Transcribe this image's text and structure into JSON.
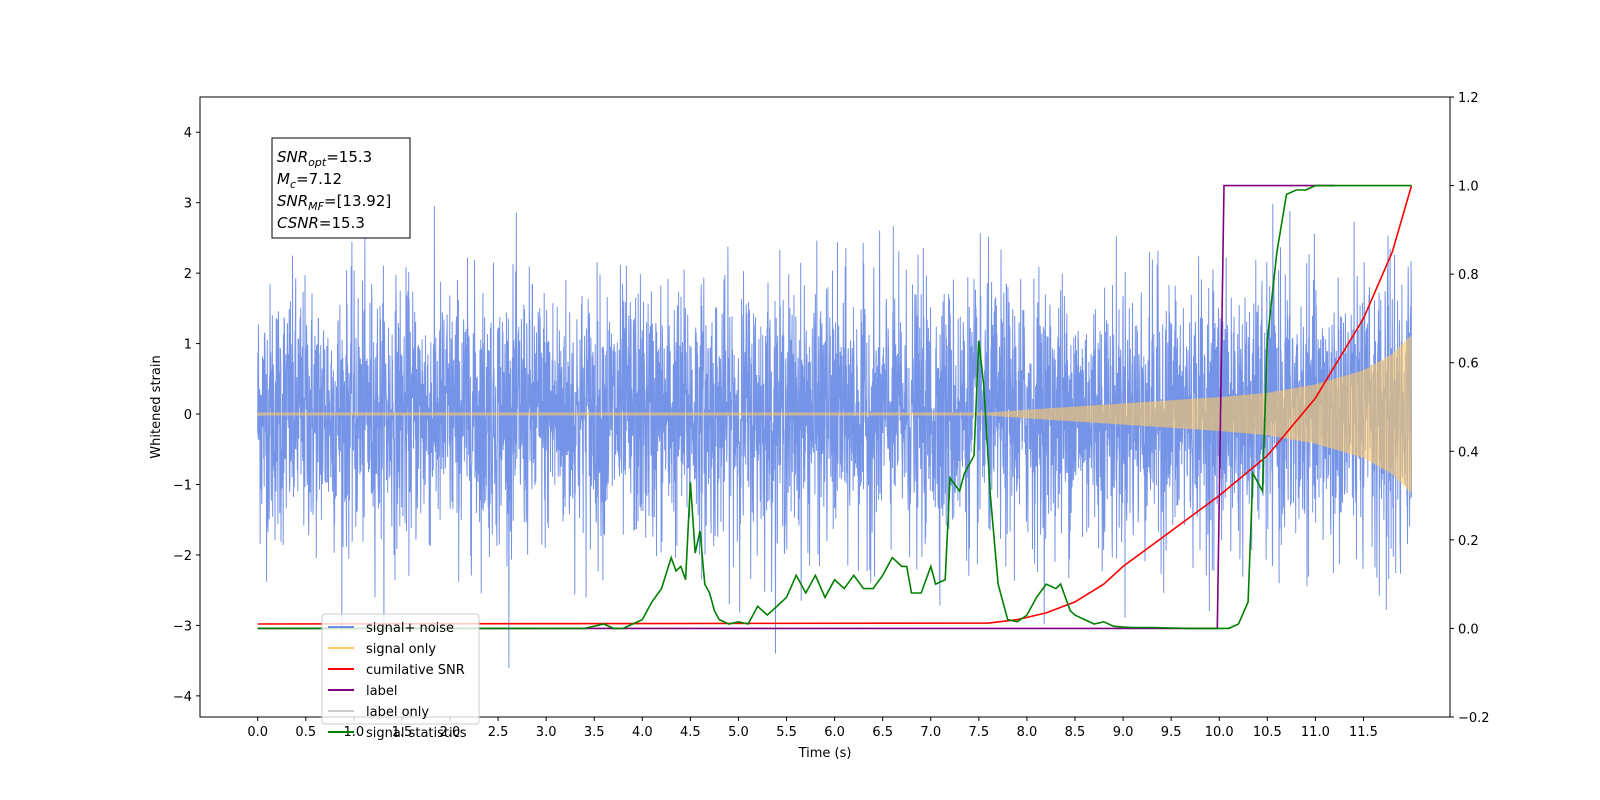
{
  "chart_data": {
    "type": "line",
    "xlabel": "Time (s)",
    "ylabel": "Whitened strain",
    "xlim": [
      -0.6,
      12.4
    ],
    "ylim": [
      -4.3,
      4.5
    ],
    "y2lim": [
      -0.2,
      1.2
    ],
    "x_ticks": [
      "0.0",
      "0.5",
      "1.0",
      "1.5",
      "2.0",
      "2.5",
      "3.0",
      "3.5",
      "4.0",
      "4.5",
      "5.0",
      "5.5",
      "6.0",
      "6.5",
      "7.0",
      "7.5",
      "8.0",
      "8.5",
      "9.0",
      "9.5",
      "10.0",
      "10.5",
      "11.0",
      "11.5"
    ],
    "y_ticks": [
      "4",
      "3",
      "2",
      "1",
      "0",
      "−1",
      "−2",
      "−3",
      "−4"
    ],
    "y2_ticks": [
      "1.2",
      "1.0",
      "0.8",
      "0.6",
      "0.4",
      "0.2",
      "0.0",
      "−0.2"
    ],
    "grid": false,
    "legend_position": "lower-left",
    "legend": [
      {
        "label": "signal+ noise",
        "color": "#6f8ee6"
      },
      {
        "label": "signal only",
        "color": "#ffc966"
      },
      {
        "label": "cumilative SNR",
        "color": "#ff0000"
      },
      {
        "label": "label",
        "color": "#800080"
      },
      {
        "label": "label only",
        "color": "#cccccc"
      },
      {
        "label": "signal statistics",
        "color": "#008000"
      }
    ],
    "annotation": {
      "lines": [
        {
          "label": "SNR",
          "sub": "opt",
          "value": "=15.3"
        },
        {
          "label": "M",
          "sub": "c",
          "value": "=7.12"
        },
        {
          "label": "SNR",
          "sub": "MF",
          "value": "=[13.92]"
        },
        {
          "label": "CSNR",
          "sub": "",
          "value": "=15.3"
        }
      ]
    },
    "series": [
      {
        "name": "signal+ noise",
        "axis": "left",
        "color": "#6f8ee6",
        "sample_interval": 0.0025,
        "x_range": [
          0.0,
          12.0
        ],
        "envelope_sigma": 0.9
      },
      {
        "name": "signal only",
        "axis": "left",
        "color": "#ffc966",
        "x_range": [
          0.0,
          12.0
        ],
        "amplitude_envelope": {
          "x": [
            0.0,
            7.6,
            8.0,
            9.0,
            10.0,
            10.5,
            11.0,
            11.5,
            11.8,
            12.0
          ],
          "y": [
            0.02,
            0.02,
            0.06,
            0.15,
            0.24,
            0.3,
            0.42,
            0.62,
            0.85,
            1.12
          ]
        }
      },
      {
        "name": "cumilative SNR",
        "axis": "right",
        "color": "#ff0000",
        "x": [
          0.0,
          7.6,
          7.9,
          8.2,
          8.5,
          8.8,
          9.0,
          9.5,
          10.0,
          10.5,
          11.0,
          11.5,
          11.8,
          12.0
        ],
        "y": [
          0.01,
          0.012,
          0.02,
          0.035,
          0.06,
          0.1,
          0.14,
          0.22,
          0.3,
          0.39,
          0.52,
          0.7,
          0.85,
          1.0
        ]
      },
      {
        "name": "label",
        "axis": "right",
        "color": "#800080",
        "x": [
          0.0,
          9.98,
          10.05,
          11.2
        ],
        "y": [
          0.0,
          0.0,
          1.0,
          1.0
        ]
      },
      {
        "name": "signal statistics",
        "axis": "right",
        "color": "#008000",
        "x": [
          0.0,
          3.4,
          3.6,
          3.7,
          3.8,
          3.9,
          4.0,
          4.1,
          4.2,
          4.3,
          4.35,
          4.4,
          4.45,
          4.5,
          4.55,
          4.6,
          4.65,
          4.7,
          4.75,
          4.8,
          4.9,
          5.0,
          5.1,
          5.2,
          5.3,
          5.35,
          5.45,
          5.5,
          5.6,
          5.7,
          5.8,
          5.9,
          6.0,
          6.1,
          6.2,
          6.3,
          6.4,
          6.5,
          6.6,
          6.7,
          6.75,
          6.8,
          6.9,
          7.0,
          7.05,
          7.15,
          7.2,
          7.3,
          7.35,
          7.45,
          7.5,
          7.55,
          7.62,
          7.7,
          7.8,
          7.9,
          8.0,
          8.1,
          8.2,
          8.3,
          8.35,
          8.45,
          8.5,
          8.6,
          8.7,
          8.8,
          8.9,
          9.0,
          9.1,
          9.3,
          9.5,
          9.7,
          10.1,
          10.2,
          10.3,
          10.35,
          10.45,
          10.5,
          10.6,
          10.7,
          10.8,
          10.9,
          11.0,
          11.1,
          12.0
        ],
        "y": [
          0.0,
          0.0,
          0.01,
          0.0,
          0.0,
          0.01,
          0.02,
          0.06,
          0.09,
          0.16,
          0.13,
          0.14,
          0.11,
          0.33,
          0.17,
          0.22,
          0.1,
          0.08,
          0.04,
          0.02,
          0.01,
          0.015,
          0.01,
          0.05,
          0.03,
          0.04,
          0.06,
          0.07,
          0.12,
          0.08,
          0.12,
          0.07,
          0.11,
          0.09,
          0.12,
          0.09,
          0.09,
          0.12,
          0.16,
          0.14,
          0.14,
          0.08,
          0.08,
          0.14,
          0.1,
          0.11,
          0.34,
          0.31,
          0.35,
          0.39,
          0.65,
          0.55,
          0.3,
          0.1,
          0.02,
          0.015,
          0.03,
          0.07,
          0.1,
          0.09,
          0.1,
          0.04,
          0.03,
          0.02,
          0.01,
          0.015,
          0.005,
          0.003,
          0.002,
          0.002,
          0.001,
          0.0,
          0.0,
          0.01,
          0.06,
          0.35,
          0.31,
          0.65,
          0.85,
          0.98,
          0.99,
          0.99,
          1.0,
          1.0,
          1.0
        ]
      }
    ]
  }
}
